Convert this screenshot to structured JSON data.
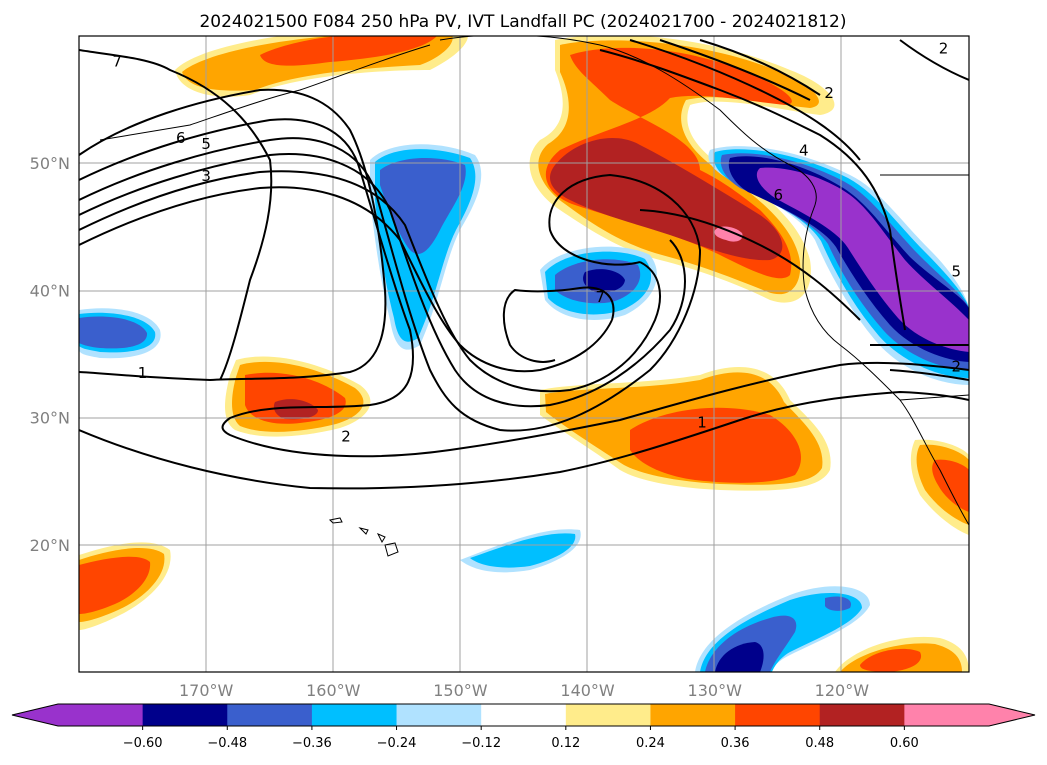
{
  "title": "2024021500 F084 250 hPa PV, IVT Landfall PC (2024021700 - 2024021812)",
  "map": {
    "lon_range": [
      -180,
      -110
    ],
    "lat_range": [
      10,
      60
    ],
    "gridlines": true,
    "lon_ticks": [
      {
        "lon": -170,
        "label": "170°W"
      },
      {
        "lon": -160,
        "label": "160°W"
      },
      {
        "lon": -150,
        "label": "150°W"
      },
      {
        "lon": -140,
        "label": "140°W"
      },
      {
        "lon": -130,
        "label": "130°W"
      },
      {
        "lon": -120,
        "label": "120°W"
      }
    ],
    "lat_ticks": [
      {
        "lat": 20,
        "label": "20°N"
      },
      {
        "lat": 30,
        "label": "30°N"
      },
      {
        "lat": 40,
        "label": "40°N"
      },
      {
        "lat": 50,
        "label": "50°N"
      }
    ],
    "pv_contour_labels": [
      {
        "text": "7",
        "lon": -177,
        "lat": 58
      },
      {
        "text": "6",
        "lon": -172,
        "lat": 52
      },
      {
        "text": "5",
        "lon": -170,
        "lat": 51.5
      },
      {
        "text": "3",
        "lon": -170,
        "lat": 49
      },
      {
        "text": "1",
        "lon": -175,
        "lat": 33.5
      },
      {
        "text": "2",
        "lon": -159,
        "lat": 28.5
      },
      {
        "text": "7",
        "lon": -139,
        "lat": 39.5
      },
      {
        "text": "1",
        "lon": -131,
        "lat": 29.6
      },
      {
        "text": "2",
        "lon": -112,
        "lat": 59
      },
      {
        "text": "2",
        "lon": -121,
        "lat": 55.5
      },
      {
        "text": "4",
        "lon": -123,
        "lat": 51
      },
      {
        "text": "6",
        "lon": -125,
        "lat": 47.5
      },
      {
        "text": "5",
        "lon": -111,
        "lat": 41.5
      },
      {
        "text": "2",
        "lon": -111,
        "lat": 34
      }
    ]
  },
  "colorbar": {
    "tick_labels": [
      "−0.60",
      "−0.48",
      "−0.36",
      "−0.24",
      "−0.12",
      "0.12",
      "0.24",
      "0.36",
      "0.48",
      "0.60"
    ],
    "colors": [
      "#9932cc",
      "#00008b",
      "#3a5fcd",
      "#00bfff",
      "#b0e2ff",
      "#ffffff",
      "#ffec8b",
      "#ffa500",
      "#ff4500",
      "#b22222",
      "#ff82ab"
    ],
    "extend": "both"
  },
  "fields": {
    "negative": {
      "c1": "#b0e2ff",
      "c2": "#00bfff",
      "c3": "#3a5fcd",
      "c4": "#00008b",
      "c5": "#9932cc"
    },
    "positive": {
      "c1": "#ffec8b",
      "c2": "#ffa500",
      "c3": "#ff4500",
      "c4": "#b22222",
      "c5": "#ff82ab"
    }
  }
}
